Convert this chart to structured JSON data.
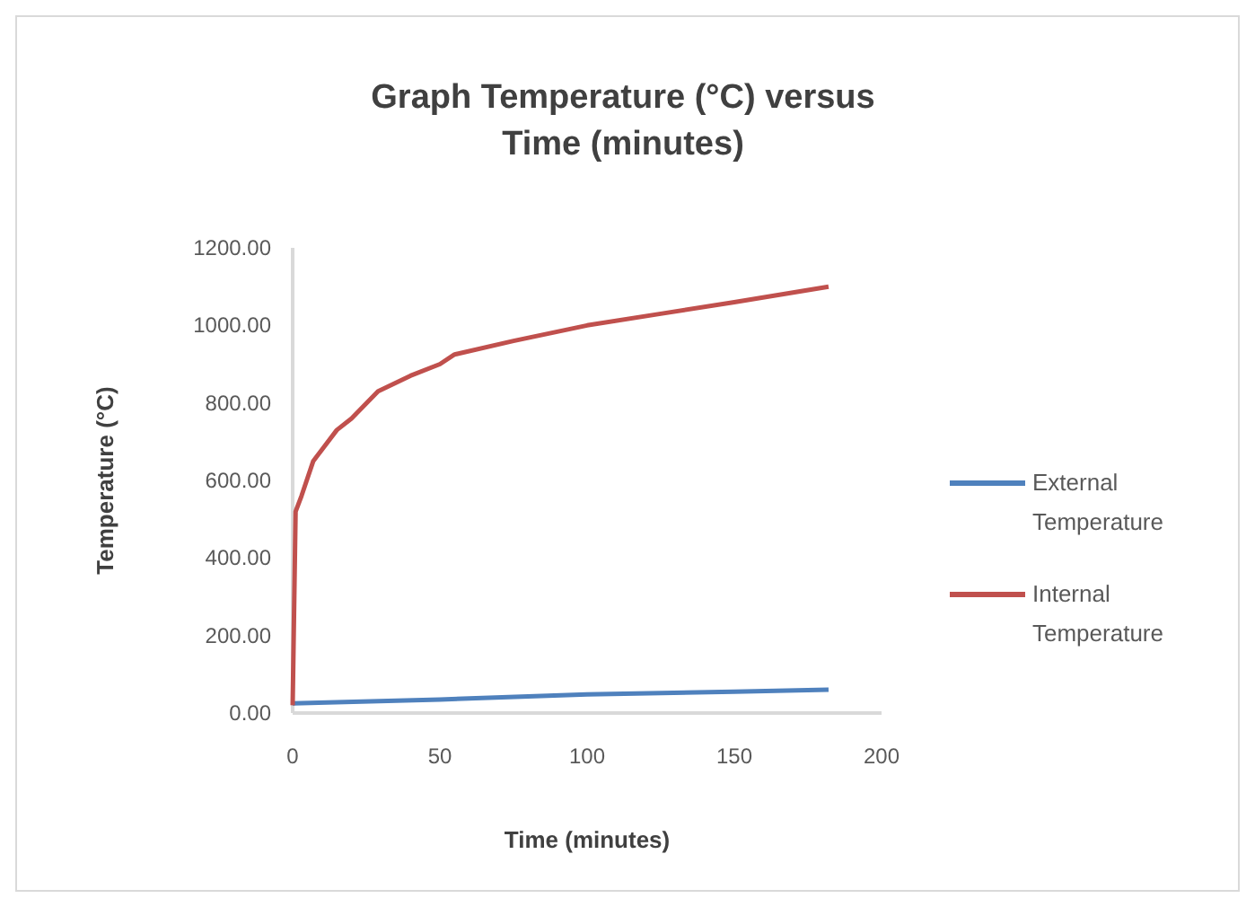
{
  "chart_data": {
    "type": "line",
    "title": "Graph Temperature (°C) versus Time (minutes)",
    "xlabel": "Time (minutes)",
    "ylabel": "Temperature (°C)",
    "xlim": [
      0,
      200
    ],
    "xticks": [
      0,
      50,
      100,
      150,
      200
    ],
    "ylim": [
      0,
      1200
    ],
    "yticks": [
      {
        "value": 0,
        "label": "0.00"
      },
      {
        "value": 200,
        "label": "200.00"
      },
      {
        "value": 400,
        "label": "400.00"
      },
      {
        "value": 600,
        "label": "600.00"
      },
      {
        "value": 800,
        "label": "800.00"
      },
      {
        "value": 1000,
        "label": "1000.00"
      },
      {
        "value": 1200,
        "label": "1200.00"
      }
    ],
    "legend": "right",
    "grid": false,
    "marker": "none",
    "series": [
      {
        "name": "External Temperature",
        "color": "#4f81bd",
        "x": [
          0,
          50,
          100,
          150,
          182
        ],
        "values": [
          25,
          35,
          48,
          55,
          60
        ]
      },
      {
        "name": "Internal Temperature",
        "color": "#c0504d",
        "x": [
          0,
          1,
          3,
          7,
          10,
          15,
          20,
          29,
          40,
          50,
          55,
          75,
          100,
          125,
          150,
          182
        ],
        "values": [
          20,
          520,
          560,
          650,
          680,
          730,
          760,
          830,
          870,
          900,
          925,
          960,
          1000,
          1030,
          1060,
          1100
        ]
      }
    ]
  }
}
